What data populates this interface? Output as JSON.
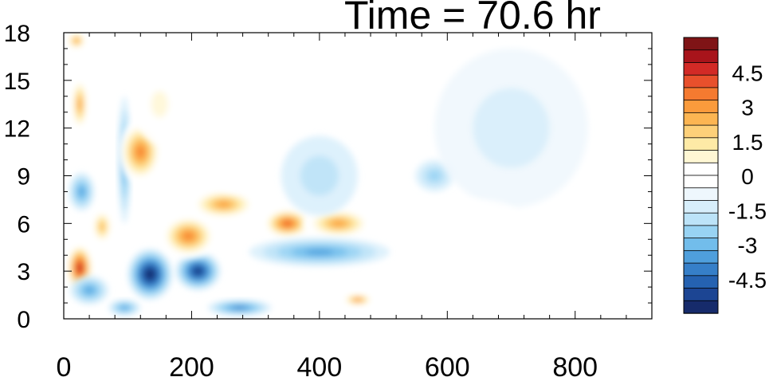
{
  "chart_data": {
    "type": "heatmap",
    "title": "Time = 70.6 hr",
    "xlabel": "",
    "ylabel": "",
    "xlim": [
      0,
      920
    ],
    "ylim": [
      0,
      18
    ],
    "x_ticks": [
      "0",
      "200",
      "400",
      "600",
      "800"
    ],
    "y_ticks": [
      "0",
      "3",
      "6",
      "9",
      "12",
      "15",
      "18"
    ],
    "colorbar": {
      "range": [
        -6,
        6
      ],
      "step": 0.5,
      "labels": [
        "4.5",
        "3",
        "1.5",
        "0",
        "-1.5",
        "-3",
        "-4.5"
      ],
      "label_values": [
        4.5,
        3,
        1.5,
        0,
        -1.5,
        -3,
        -4.5
      ],
      "colors": [
        "#7f1416",
        "#a8141b",
        "#d22a26",
        "#e8502c",
        "#f57a30",
        "#fa9b3c",
        "#fcb552",
        "#fdd079",
        "#feeaa6",
        "#fff7d4",
        "#ffffff",
        "#ffffff",
        "#eef7fd",
        "#d7eefb",
        "#bce3f8",
        "#98d3f3",
        "#72bdeb",
        "#4f9fdc",
        "#367fc8",
        "#2562b1",
        "#1c4593",
        "#162b6b"
      ]
    },
    "features": [
      {
        "x": 25,
        "y": 3.2,
        "rx": 22,
        "ry": 1.6,
        "value": 5.5
      },
      {
        "x": 25,
        "y": 13.5,
        "rx": 14,
        "ry": 1.8,
        "value": 3.5
      },
      {
        "x": 20,
        "y": 17.5,
        "rx": 16,
        "ry": 0.6,
        "value": 3.5
      },
      {
        "x": 28,
        "y": 8.0,
        "rx": 20,
        "ry": 1.2,
        "value": -2.5
      },
      {
        "x": 40,
        "y": 1.8,
        "rx": 30,
        "ry": 0.9,
        "value": -2.5
      },
      {
        "x": 60,
        "y": 5.8,
        "rx": 18,
        "ry": 1.2,
        "value": 3.0
      },
      {
        "x": 95,
        "y": 10.0,
        "rx": 10,
        "ry": 4.0,
        "value": -2.5
      },
      {
        "x": 95,
        "y": 0.7,
        "rx": 25,
        "ry": 0.5,
        "value": -2.5
      },
      {
        "x": 120,
        "y": 10.5,
        "rx": 35,
        "ry": 2.0,
        "value": 4.0
      },
      {
        "x": 150,
        "y": 13.5,
        "rx": 40,
        "ry": 2.5,
        "value": 1.5
      },
      {
        "x": 135,
        "y": 2.8,
        "rx": 35,
        "ry": 1.6,
        "value": -5.0
      },
      {
        "x": 210,
        "y": 3.0,
        "rx": 35,
        "ry": 1.2,
        "value": -4.5
      },
      {
        "x": 195,
        "y": 5.2,
        "rx": 45,
        "ry": 1.4,
        "value": 4.0
      },
      {
        "x": 250,
        "y": 7.2,
        "rx": 55,
        "ry": 1.0,
        "value": 3.5
      },
      {
        "x": 350,
        "y": 6.0,
        "rx": 40,
        "ry": 1.0,
        "value": 4.5
      },
      {
        "x": 430,
        "y": 6.0,
        "rx": 55,
        "ry": 1.0,
        "value": 3.5
      },
      {
        "x": 400,
        "y": 4.2,
        "rx": 110,
        "ry": 0.9,
        "value": -2.5
      },
      {
        "x": 460,
        "y": 1.2,
        "rx": 25,
        "ry": 0.4,
        "value": 4.0
      },
      {
        "x": 275,
        "y": 0.7,
        "rx": 50,
        "ry": 0.5,
        "value": -3.0
      },
      {
        "x": 270,
        "y": 12.0,
        "rx": 80,
        "ry": 4.0,
        "value": 1.0
      },
      {
        "x": 400,
        "y": 9.0,
        "rx": 60,
        "ry": 2.5,
        "value": -1.0
      },
      {
        "x": 580,
        "y": 9.0,
        "rx": 30,
        "ry": 1.0,
        "value": -1.5
      },
      {
        "x": 700,
        "y": 12.0,
        "rx": 120,
        "ry": 5.0,
        "value": -0.6
      },
      {
        "x": 650,
        "y": 6.5,
        "rx": 60,
        "ry": 1.0,
        "value": 0.8
      },
      {
        "x": 700,
        "y": 3.5,
        "rx": 40,
        "ry": 0.6,
        "value": 0.7
      },
      {
        "x": 540,
        "y": 1.0,
        "rx": 30,
        "ry": 0.4,
        "value": 0.8
      }
    ]
  }
}
